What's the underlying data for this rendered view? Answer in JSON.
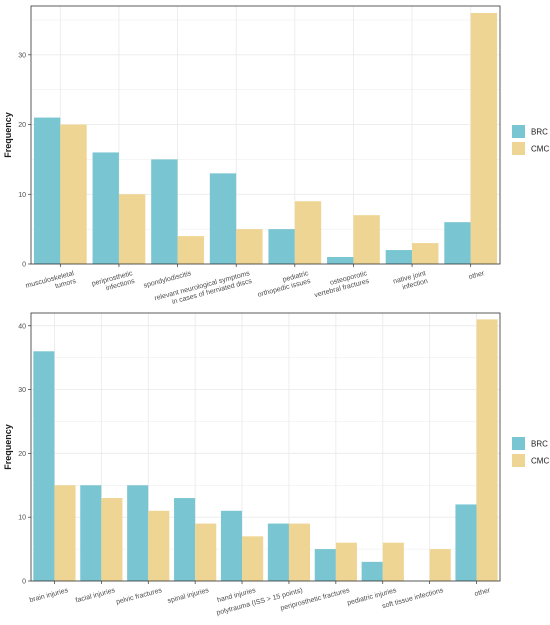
{
  "colors": {
    "BRC": "#79c5d2",
    "CMC": "#efd593",
    "grid": "#ebebeb",
    "panel_border": "#333333"
  },
  "chart_data": [
    {
      "type": "bar",
      "ylabel": "Frequency",
      "xlabel": "",
      "ylim": [
        0,
        37
      ],
      "yticks": [
        0,
        10,
        20,
        30
      ],
      "grid": true,
      "legend_position": "right",
      "categories": [
        [
          "musculoskeletal",
          "tumors"
        ],
        [
          "periprosthetic",
          "infections"
        ],
        [
          "spondylodiscitis"
        ],
        [
          "relevant neurological symptoms",
          "in cases of herniated discs"
        ],
        [
          "pediatric",
          "orthopedic issues"
        ],
        [
          "osteoporotic",
          "vertebral fractures"
        ],
        [
          "native joint",
          "infection"
        ],
        [
          "other"
        ]
      ],
      "series": [
        {
          "name": "BRC",
          "values": [
            21,
            16,
            15,
            13,
            5,
            1,
            2,
            6
          ]
        },
        {
          "name": "CMC",
          "values": [
            20,
            10,
            4,
            5,
            9,
            7,
            3,
            36
          ]
        }
      ]
    },
    {
      "type": "bar",
      "ylabel": "Frequency",
      "xlabel": "",
      "ylim": [
        0,
        42
      ],
      "yticks": [
        0,
        10,
        20,
        30,
        40
      ],
      "grid": true,
      "legend_position": "right",
      "categories": [
        [
          "brain injuries"
        ],
        [
          "facial injuries"
        ],
        [
          "pelvic fractures"
        ],
        [
          "spinal injuries"
        ],
        [
          "hand injuries"
        ],
        [
          "polytrauma (ISS > 15 points)"
        ],
        [
          "periprosthetic fractures"
        ],
        [
          "pediatric injuries"
        ],
        [
          "soft tissue infections"
        ],
        [
          "other"
        ]
      ],
      "series": [
        {
          "name": "BRC",
          "values": [
            36,
            15,
            15,
            13,
            11,
            9,
            5,
            3,
            0,
            12
          ]
        },
        {
          "name": "CMC",
          "values": [
            15,
            13,
            11,
            9,
            7,
            9,
            6,
            6,
            5,
            41
          ]
        }
      ]
    }
  ]
}
